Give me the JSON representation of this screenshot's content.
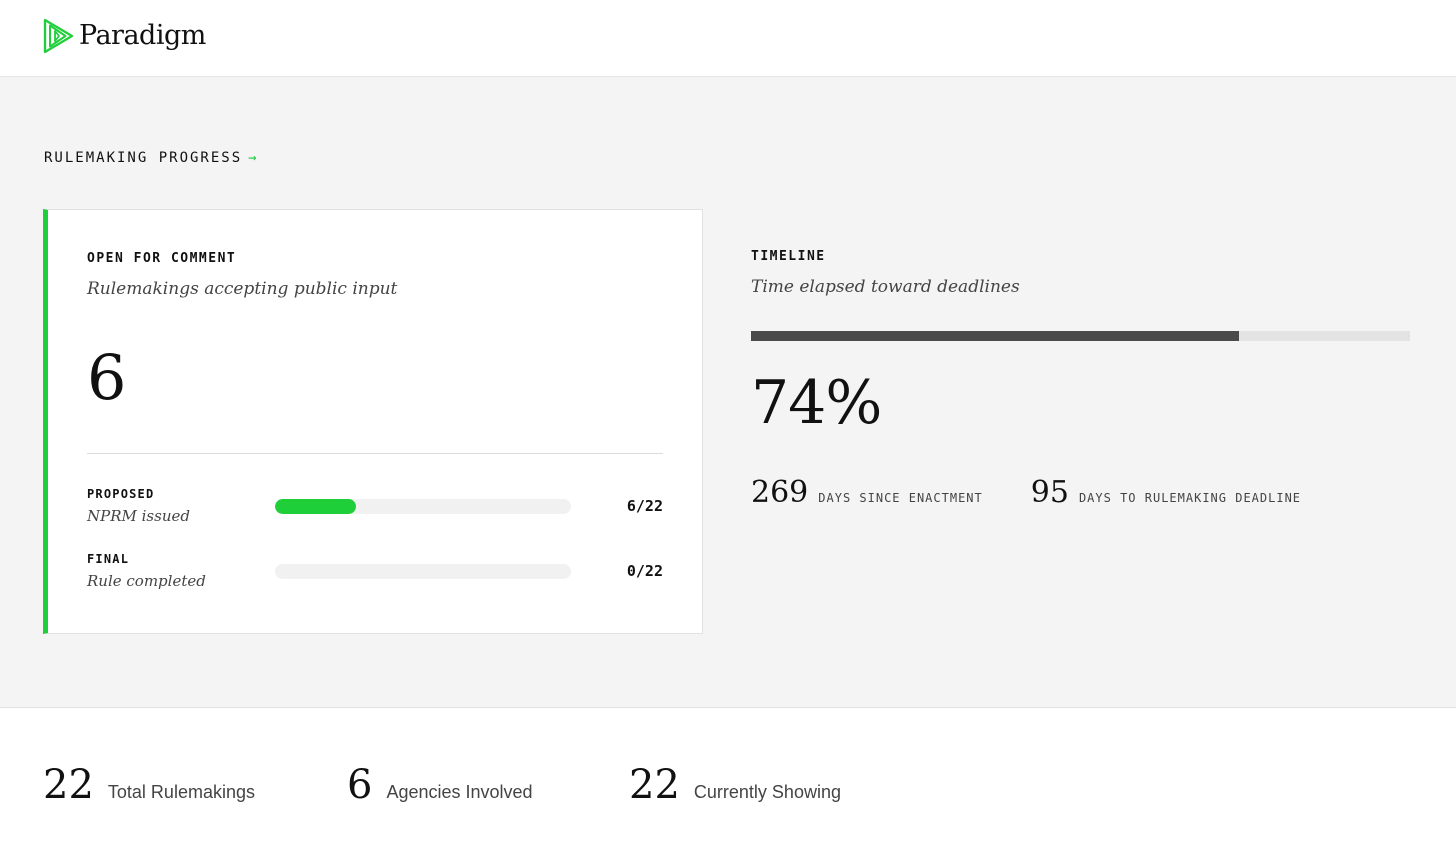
{
  "brand": {
    "name": "Paradigm",
    "accent": "#1fcf3a"
  },
  "section": {
    "title": "RULEMAKING PROGRESS",
    "arrow": "→"
  },
  "open_card": {
    "label": "OPEN FOR COMMENT",
    "subtitle": "Rulemakings accepting public input",
    "value": "6",
    "stages": [
      {
        "label": "PROPOSED",
        "subtitle": "NPRM issued",
        "count": "6/22",
        "fraction": 0.2727
      },
      {
        "label": "FINAL",
        "subtitle": "Rule completed",
        "count": "0/22",
        "fraction": 0
      }
    ]
  },
  "timeline": {
    "label": "TIMELINE",
    "subtitle": "Time elapsed toward deadlines",
    "percent_text": "74%",
    "progress_fraction": 0.74,
    "stats": [
      {
        "value": "269",
        "label": "DAYS SINCE ENACTMENT"
      },
      {
        "value": "95",
        "label": "DAYS TO RULEMAKING DEADLINE"
      }
    ]
  },
  "summary": [
    {
      "value": "22",
      "label": "Total Rulemakings"
    },
    {
      "value": "6",
      "label": "Agencies Involved"
    },
    {
      "value": "22",
      "label": "Currently Showing"
    }
  ]
}
